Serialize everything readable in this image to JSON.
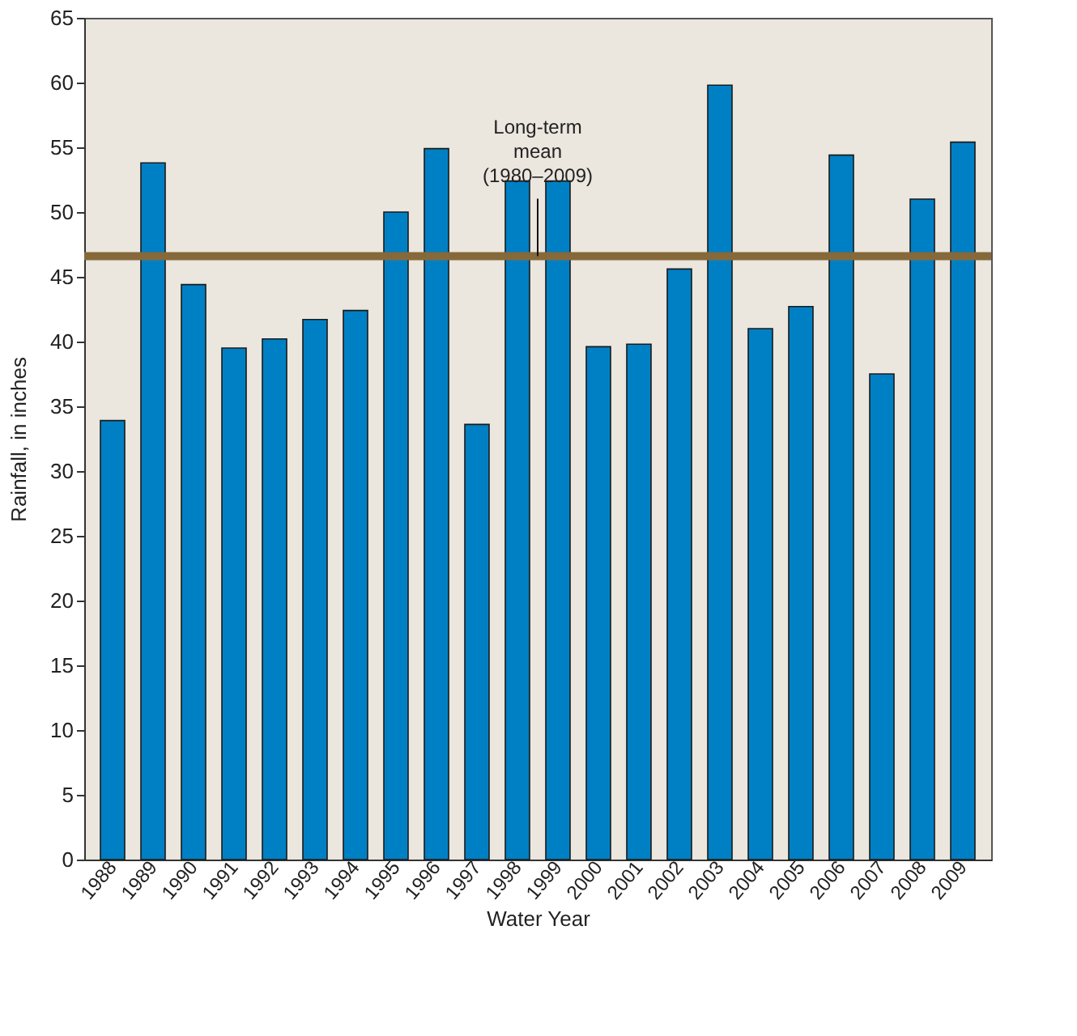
{
  "chart_data": {
    "type": "bar",
    "xlabel": "Water Year",
    "ylabel": "Rainfall, in inches",
    "categories": [
      "1988",
      "1989",
      "1990",
      "1991",
      "1992",
      "1993",
      "1994",
      "1995",
      "1996",
      "1997",
      "1998",
      "1999",
      "2000",
      "2001",
      "2002",
      "2003",
      "2004",
      "2005",
      "2006",
      "2007",
      "2008",
      "2009"
    ],
    "values": [
      33.9,
      53.8,
      44.4,
      39.5,
      40.2,
      41.7,
      42.4,
      50.0,
      54.9,
      33.6,
      52.4,
      52.4,
      39.6,
      39.8,
      45.6,
      59.8,
      41.0,
      42.7,
      54.4,
      37.5,
      51.0,
      55.4
    ],
    "color": "#0080c4",
    "ylim": [
      0,
      65
    ],
    "yticks": [
      0,
      5,
      10,
      15,
      20,
      25,
      30,
      35,
      40,
      45,
      50,
      55,
      60,
      65
    ],
    "ref_lines": [
      {
        "axis": "y",
        "value": 46.6,
        "label": "Long-term mean (1980–2009)",
        "color": "#86693a"
      }
    ],
    "grid": false
  }
}
